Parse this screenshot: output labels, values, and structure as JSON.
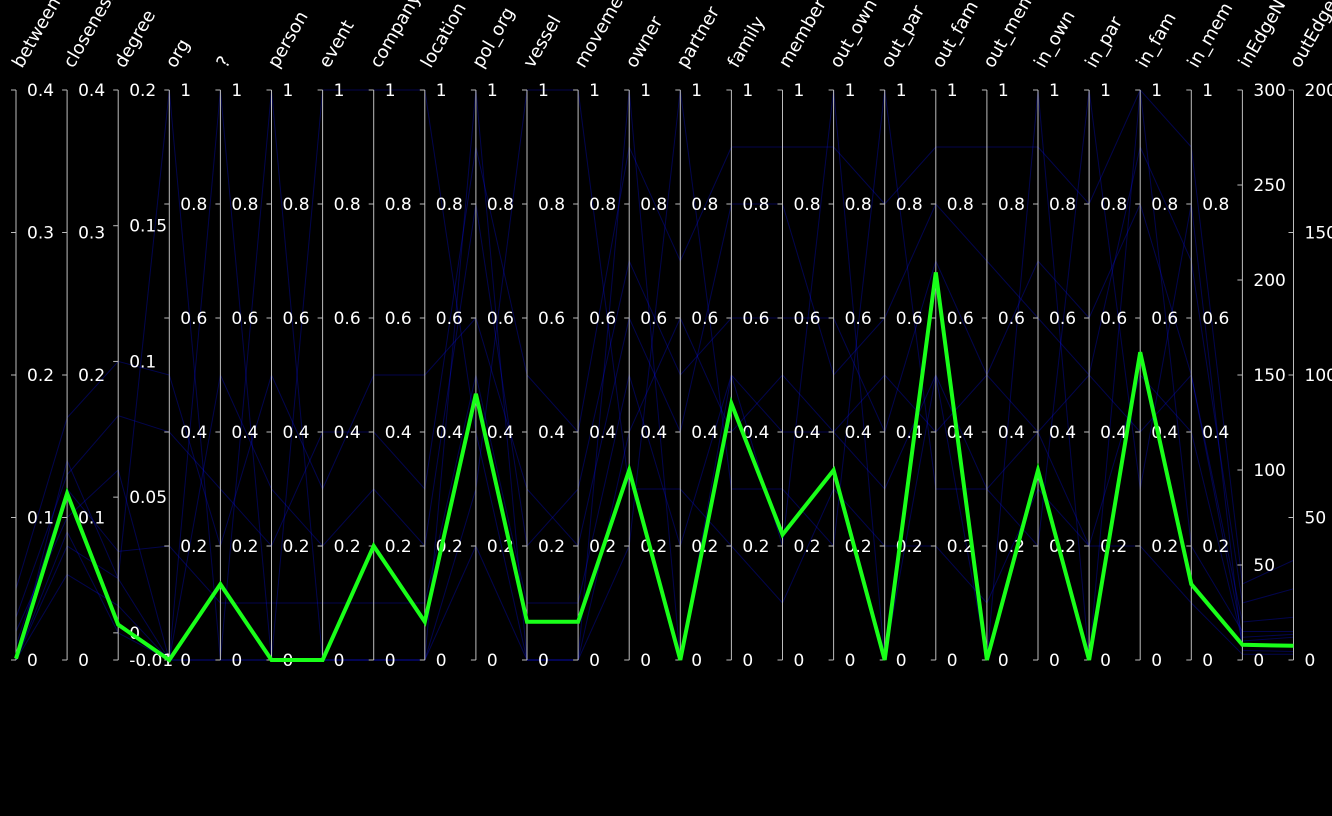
{
  "chart_data": {
    "type": "parallel-coordinates",
    "title": "",
    "dimensions": [
      {
        "name": "betweeni",
        "min": 0,
        "max": 0.4,
        "ticks": [
          0,
          0.1,
          0.2,
          0.3,
          0.4
        ],
        "tick_labels": [
          "0",
          "0.1",
          "0.2",
          "0.3",
          "0.4"
        ]
      },
      {
        "name": "closeness",
        "min": 0,
        "max": 0.4,
        "ticks": [
          0,
          0.1,
          0.2,
          0.3,
          0.4
        ],
        "tick_labels": [
          "0",
          "0.1",
          "0.2",
          "0.3",
          "0.4"
        ]
      },
      {
        "name": "degree",
        "min": -0.01,
        "max": 0.2,
        "ticks": [
          -0.01,
          0,
          0.05,
          0.1,
          0.15,
          0.2
        ],
        "tick_labels": [
          "-0.01",
          "0",
          "0.05",
          "0.1",
          "0.15",
          "0.2"
        ]
      },
      {
        "name": "org",
        "min": 0,
        "max": 1,
        "ticks": [
          0,
          0.2,
          0.4,
          0.6,
          0.8,
          1
        ],
        "tick_labels": [
          "0",
          "0.2",
          "0.4",
          "0.6",
          "0.8",
          "1"
        ]
      },
      {
        "name": "?",
        "min": 0,
        "max": 1,
        "ticks": [
          0,
          0.2,
          0.4,
          0.6,
          0.8,
          1
        ],
        "tick_labels": [
          "0",
          "0.2",
          "0.4",
          "0.6",
          "0.8",
          "1"
        ]
      },
      {
        "name": "person",
        "min": 0,
        "max": 1,
        "ticks": [
          0,
          0.2,
          0.4,
          0.6,
          0.8,
          1
        ],
        "tick_labels": [
          "0",
          "0.2",
          "0.4",
          "0.6",
          "0.8",
          "1"
        ]
      },
      {
        "name": "event",
        "min": 0,
        "max": 1,
        "ticks": [
          0,
          0.2,
          0.4,
          0.6,
          0.8,
          1
        ],
        "tick_labels": [
          "0",
          "0.2",
          "0.4",
          "0.6",
          "0.8",
          "1"
        ]
      },
      {
        "name": "company",
        "min": 0,
        "max": 1,
        "ticks": [
          0,
          0.2,
          0.4,
          0.6,
          0.8,
          1
        ],
        "tick_labels": [
          "0",
          "0.2",
          "0.4",
          "0.6",
          "0.8",
          "1"
        ]
      },
      {
        "name": "location",
        "min": 0,
        "max": 1,
        "ticks": [
          0,
          0.2,
          0.4,
          0.6,
          0.8,
          1
        ],
        "tick_labels": [
          "0",
          "0.2",
          "0.4",
          "0.6",
          "0.8",
          "1"
        ]
      },
      {
        "name": "pol_org",
        "min": 0,
        "max": 1,
        "ticks": [
          0,
          0.2,
          0.4,
          0.6,
          0.8,
          1
        ],
        "tick_labels": [
          "0",
          "0.2",
          "0.4",
          "0.6",
          "0.8",
          "1"
        ]
      },
      {
        "name": "vessel",
        "min": 0,
        "max": 1,
        "ticks": [
          0,
          0.2,
          0.4,
          0.6,
          0.8,
          1
        ],
        "tick_labels": [
          "0",
          "0.2",
          "0.4",
          "0.6",
          "0.8",
          "1"
        ]
      },
      {
        "name": "movemer",
        "min": 0,
        "max": 1,
        "ticks": [
          0,
          0.2,
          0.4,
          0.6,
          0.8,
          1
        ],
        "tick_labels": [
          "0",
          "0.2",
          "0.4",
          "0.6",
          "0.8",
          "1"
        ]
      },
      {
        "name": "owner",
        "min": 0,
        "max": 1,
        "ticks": [
          0,
          0.2,
          0.4,
          0.6,
          0.8,
          1
        ],
        "tick_labels": [
          "0",
          "0.2",
          "0.4",
          "0.6",
          "0.8",
          "1"
        ]
      },
      {
        "name": "partner",
        "min": 0,
        "max": 1,
        "ticks": [
          0,
          0.2,
          0.4,
          0.6,
          0.8,
          1
        ],
        "tick_labels": [
          "0",
          "0.2",
          "0.4",
          "0.6",
          "0.8",
          "1"
        ]
      },
      {
        "name": "family",
        "min": 0,
        "max": 1,
        "ticks": [
          0,
          0.2,
          0.4,
          0.6,
          0.8,
          1
        ],
        "tick_labels": [
          "0",
          "0.2",
          "0.4",
          "0.6",
          "0.8",
          "1"
        ]
      },
      {
        "name": "member",
        "min": 0,
        "max": 1,
        "ticks": [
          0,
          0.2,
          0.4,
          0.6,
          0.8,
          1
        ],
        "tick_labels": [
          "0",
          "0.2",
          "0.4",
          "0.6",
          "0.8",
          "1"
        ]
      },
      {
        "name": "out_own",
        "min": 0,
        "max": 1,
        "ticks": [
          0,
          0.2,
          0.4,
          0.6,
          0.8,
          1
        ],
        "tick_labels": [
          "0",
          "0.2",
          "0.4",
          "0.6",
          "0.8",
          "1"
        ]
      },
      {
        "name": "out_par",
        "min": 0,
        "max": 1,
        "ticks": [
          0,
          0.2,
          0.4,
          0.6,
          0.8,
          1
        ],
        "tick_labels": [
          "0",
          "0.2",
          "0.4",
          "0.6",
          "0.8",
          "1"
        ]
      },
      {
        "name": "out_fam",
        "min": 0,
        "max": 1,
        "ticks": [
          0,
          0.2,
          0.4,
          0.6,
          0.8,
          1
        ],
        "tick_labels": [
          "0",
          "0.2",
          "0.4",
          "0.6",
          "0.8",
          "1"
        ]
      },
      {
        "name": "out_mem",
        "min": 0,
        "max": 1,
        "ticks": [
          0,
          0.2,
          0.4,
          0.6,
          0.8,
          1
        ],
        "tick_labels": [
          "0",
          "0.2",
          "0.4",
          "0.6",
          "0.8",
          "1"
        ]
      },
      {
        "name": "in_own",
        "min": 0,
        "max": 1,
        "ticks": [
          0,
          0.2,
          0.4,
          0.6,
          0.8,
          1
        ],
        "tick_labels": [
          "0",
          "0.2",
          "0.4",
          "0.6",
          "0.8",
          "1"
        ]
      },
      {
        "name": "in_par",
        "min": 0,
        "max": 1,
        "ticks": [
          0,
          0.2,
          0.4,
          0.6,
          0.8,
          1
        ],
        "tick_labels": [
          "0",
          "0.2",
          "0.4",
          "0.6",
          "0.8",
          "1"
        ]
      },
      {
        "name": "in_fam",
        "min": 0,
        "max": 1,
        "ticks": [
          0,
          0.2,
          0.4,
          0.6,
          0.8,
          1
        ],
        "tick_labels": [
          "0",
          "0.2",
          "0.4",
          "0.6",
          "0.8",
          "1"
        ]
      },
      {
        "name": "in_mem",
        "min": 0,
        "max": 1,
        "ticks": [
          0,
          0.2,
          0.4,
          0.6,
          0.8,
          1
        ],
        "tick_labels": [
          "0",
          "0.2",
          "0.4",
          "0.6",
          "0.8",
          "1"
        ]
      },
      {
        "name": "inEdgeN",
        "min": 0,
        "max": 300,
        "ticks": [
          0,
          50,
          100,
          150,
          200,
          250,
          300
        ],
        "tick_labels": [
          "0",
          "50",
          "100",
          "150",
          "200",
          "250",
          "300"
        ]
      },
      {
        "name": "outEdge",
        "min": 0,
        "max": 200,
        "ticks": [
          0,
          50,
          100,
          150,
          200
        ],
        "tick_labels": [
          "0",
          "50",
          "100",
          "150",
          "200"
        ]
      }
    ],
    "highlighted_record": {
      "color": "#19ff19",
      "values": [
        0.001,
        0.117,
        0.003,
        0,
        0.133,
        0,
        0,
        0.2,
        0.067,
        0.467,
        0.067,
        0.067,
        0.333,
        0,
        0.45,
        0.22,
        0.333,
        0,
        0.68,
        0,
        0.333,
        0,
        0.54,
        0.133,
        8,
        5
      ]
    },
    "background_records": {
      "color": "#0a12ff",
      "values": [
        [
          0.01,
          0.12,
          0.03,
          0.2,
          0.1,
          0.1,
          0.1,
          0.1,
          0.1,
          0.5,
          0.1,
          0.1,
          0.5,
          0.2,
          0.5,
          0.4,
          0.4,
          0.3,
          0.5,
          0.3,
          0.4,
          0.2,
          0.5,
          0.4,
          10,
          8
        ],
        [
          0.0,
          0.14,
          0.02,
          1,
          0,
          0,
          0,
          0,
          0,
          1,
          0,
          0,
          1,
          0,
          0.5,
          0.2,
          1,
          0,
          0.5,
          0,
          1,
          0,
          1,
          0.2,
          15,
          10
        ],
        [
          0.02,
          0.1,
          0.06,
          0,
          0.5,
          0.3,
          0.2,
          0.3,
          0.2,
          0.8,
          0.2,
          0.3,
          0.7,
          0.5,
          0.6,
          0.6,
          0.6,
          0.4,
          0.7,
          0.5,
          0.7,
          0.6,
          0.8,
          0.5,
          20,
          15
        ],
        [
          0.0,
          0.06,
          0.01,
          0,
          1,
          0,
          0,
          0,
          0,
          0.2,
          0,
          0,
          0.2,
          1,
          0.3,
          0.3,
          0.2,
          1,
          0.3,
          0.3,
          0.2,
          1,
          0.3,
          0.8,
          5,
          3
        ],
        [
          0.05,
          0.17,
          0.1,
          0.5,
          0.2,
          0.5,
          0.3,
          0.5,
          0.5,
          0.6,
          0.3,
          0.2,
          0.6,
          0.4,
          0.8,
          0.8,
          0.5,
          0.6,
          0.8,
          0.7,
          0.6,
          0.5,
          0.9,
          0.7,
          30,
          25
        ],
        [
          0.0,
          0.09,
          0.0,
          0,
          0,
          1,
          0,
          0,
          0,
          0.3,
          1,
          1,
          0.3,
          0.3,
          0.2,
          0.1,
          0.3,
          0.2,
          0.2,
          0.1,
          0.3,
          0.2,
          0.2,
          0.1,
          3,
          2
        ],
        [
          0.0,
          0.08,
          0.02,
          0,
          0,
          0,
          1,
          1,
          1,
          0.4,
          0,
          0,
          0.4,
          0.6,
          0.4,
          0.5,
          0.4,
          0.5,
          0.4,
          0.5,
          0.4,
          0.5,
          0.4,
          0.5,
          12,
          9
        ],
        [
          0.03,
          0.13,
          0.08,
          0.4,
          0.3,
          0.2,
          0.4,
          0.4,
          0.3,
          0.9,
          0.5,
          0.4,
          0.9,
          0.7,
          0.9,
          0.9,
          0.9,
          0.8,
          0.9,
          0.9,
          0.9,
          0.8,
          1,
          0.9,
          40,
          35
        ]
      ]
    }
  }
}
